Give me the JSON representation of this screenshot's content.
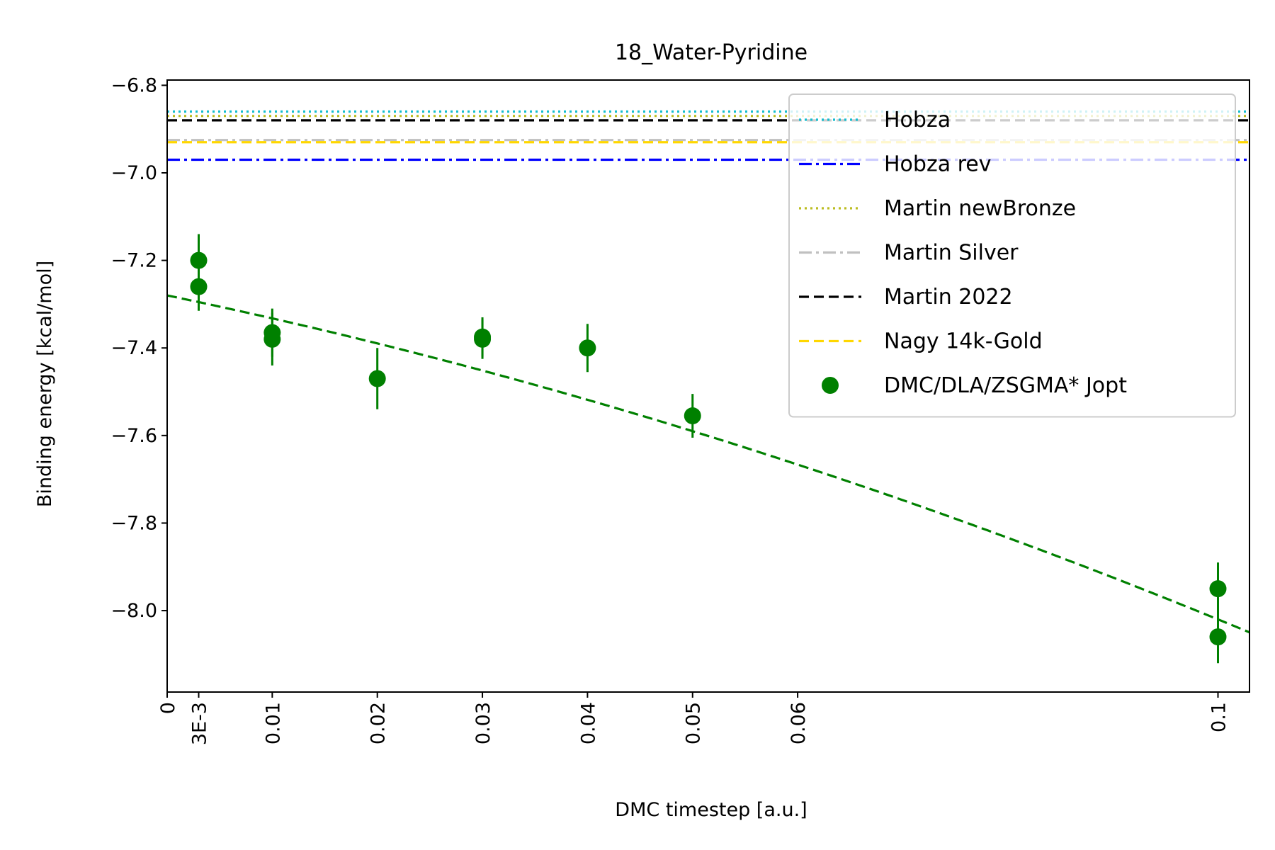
{
  "chart_data": {
    "type": "scatter",
    "title": "18_Water-Pyridine",
    "xlabel": "DMC timestep [a.u.]",
    "ylabel": "Binding energy [kcal/mol]",
    "xlim": [
      0,
      0.103
    ],
    "ylim": [
      -8.186,
      -6.788
    ],
    "x_ticks": [
      {
        "value": 0,
        "label": "0"
      },
      {
        "value": 0.003,
        "label": "3E-3"
      },
      {
        "value": 0.01,
        "label": "0.01"
      },
      {
        "value": 0.02,
        "label": "0.02"
      },
      {
        "value": 0.03,
        "label": "0.03"
      },
      {
        "value": 0.04,
        "label": "0.04"
      },
      {
        "value": 0.05,
        "label": "0.05"
      },
      {
        "value": 0.06,
        "label": "0.06"
      },
      {
        "value": 0.1,
        "label": "0.1"
      }
    ],
    "y_ticks": [
      {
        "value": -6.8,
        "label": "−6.8"
      },
      {
        "value": -7.0,
        "label": "−7.0"
      },
      {
        "value": -7.2,
        "label": "−7.2"
      },
      {
        "value": -7.4,
        "label": "−7.4"
      },
      {
        "value": -7.6,
        "label": "−7.6"
      },
      {
        "value": -7.8,
        "label": "−7.8"
      },
      {
        "value": -8.0,
        "label": "−8.0"
      }
    ],
    "grid": false,
    "legend_position": "top-right",
    "reference_lines": [
      {
        "name": "Hobza",
        "y": -6.86,
        "color": "#17becf",
        "style": "dotted"
      },
      {
        "name": "Hobza rev",
        "y": -6.97,
        "color": "#0000ff",
        "style": "dashdot"
      },
      {
        "name": "Martin newBronze",
        "y": -6.87,
        "color": "#bcbd22",
        "style": "dotted"
      },
      {
        "name": "Martin Silver",
        "y": -6.925,
        "color": "#c0c0c0",
        "style": "dashdot"
      },
      {
        "name": "Martin 2022",
        "y": -6.88,
        "color": "#000000",
        "style": "dashed"
      },
      {
        "name": "Nagy 14k-Gold",
        "y": -6.93,
        "color": "#ffd700",
        "style": "dashed"
      }
    ],
    "series": [
      {
        "name": "DMC/DLA/ZSGMA* Jopt",
        "color": "#008000",
        "points": [
          {
            "x": 0.003,
            "y": -7.2,
            "err": 0.06
          },
          {
            "x": 0.003,
            "y": -7.26,
            "err": 0.055
          },
          {
            "x": 0.01,
            "y": -7.365,
            "err": 0.055
          },
          {
            "x": 0.01,
            "y": -7.38,
            "err": 0.06
          },
          {
            "x": 0.02,
            "y": -7.47,
            "err": 0.07
          },
          {
            "x": 0.03,
            "y": -7.375,
            "err": 0.045
          },
          {
            "x": 0.03,
            "y": -7.38,
            "err": 0.045
          },
          {
            "x": 0.04,
            "y": -7.4,
            "err": 0.055
          },
          {
            "x": 0.05,
            "y": -7.555,
            "err": 0.05
          },
          {
            "x": 0.1,
            "y": -7.95,
            "err": 0.06
          },
          {
            "x": 0.1,
            "y": -8.06,
            "err": 0.06
          }
        ]
      }
    ],
    "fit": {
      "a": -7.28,
      "b": -5.0,
      "c": -24.0,
      "color": "#008000",
      "style": "dashed"
    }
  }
}
